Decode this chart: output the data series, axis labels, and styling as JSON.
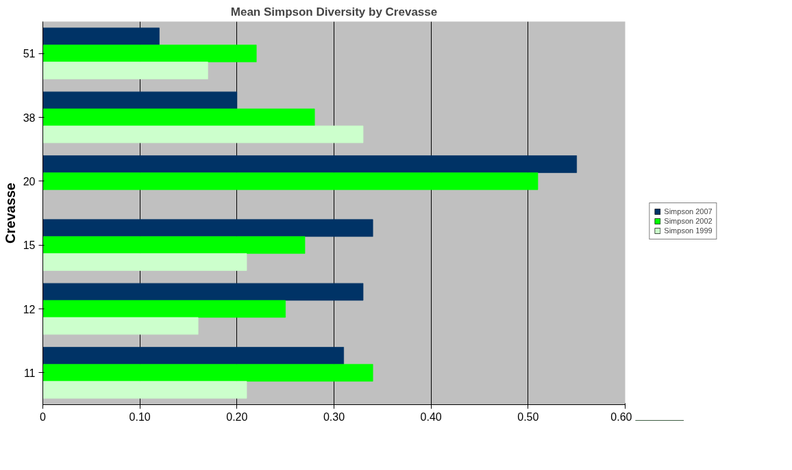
{
  "chart_data": {
    "type": "bar",
    "orientation": "horizontal",
    "title": "Mean Simpson Diversity by Crevasse",
    "ylabel": "Crevasse",
    "categories": [
      "51",
      "38",
      "20",
      "15",
      "12",
      "11"
    ],
    "series": [
      {
        "name": "Simpson 2007",
        "color": "#003366",
        "values": [
          0.12,
          0.2,
          0.55,
          0.34,
          0.33,
          0.31
        ]
      },
      {
        "name": "Simpson 2002",
        "color": "#00ff00",
        "values": [
          0.22,
          0.28,
          0.51,
          0.27,
          0.25,
          0.34
        ]
      },
      {
        "name": "Simpson 1999",
        "color": "#ccffcc",
        "values": [
          0.17,
          0.33,
          0,
          0.21,
          0.16,
          0.21
        ]
      }
    ],
    "xlim": [
      0,
      0.6
    ],
    "xticks": [
      0,
      {
        "value": 0.1,
        "label": "0.10"
      },
      {
        "value": 0.2,
        "label": "0.20"
      },
      {
        "value": 0.3,
        "label": "0.30"
      },
      {
        "value": 0.4,
        "label": "0.40"
      },
      {
        "value": 0.5,
        "label": "0.50"
      },
      {
        "value": 0.6,
        "label": "0.60"
      }
    ],
    "grid": "x",
    "legend": "right"
  }
}
